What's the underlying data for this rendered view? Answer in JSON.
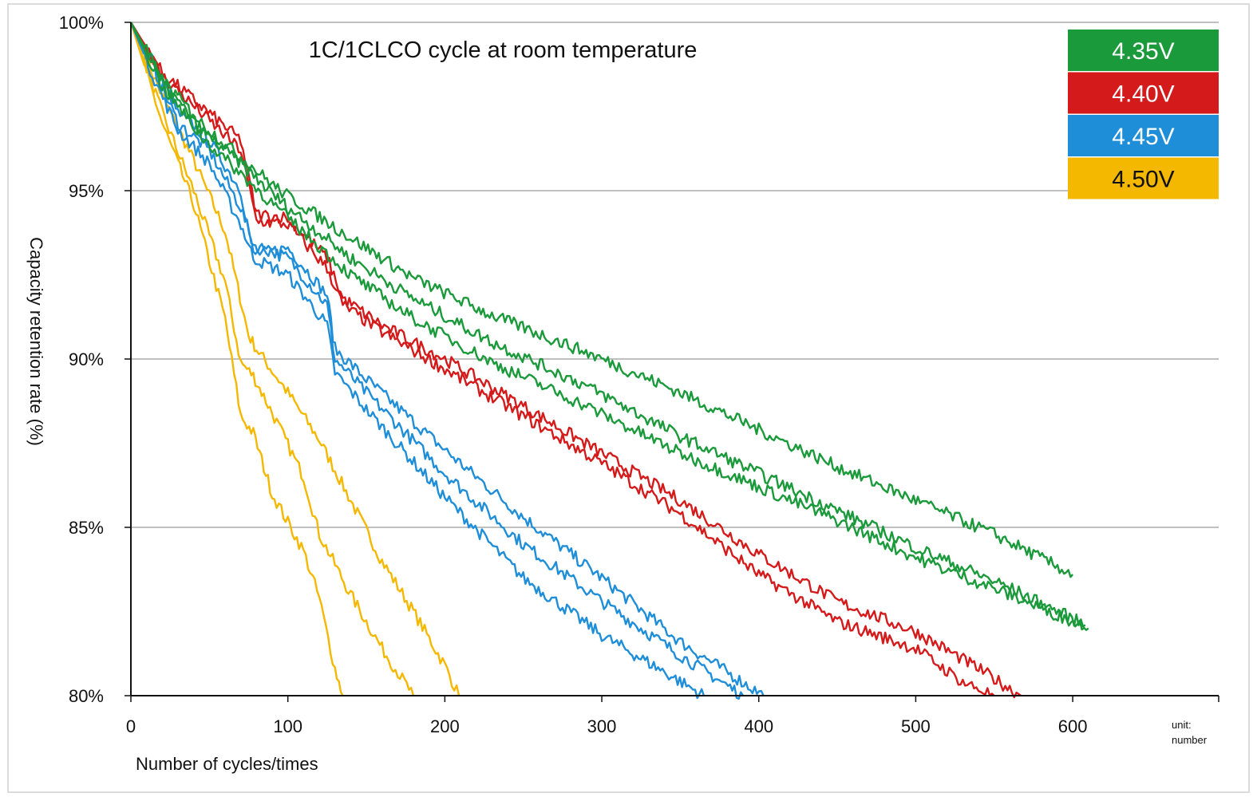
{
  "chart_data": {
    "type": "line",
    "title": "1C/1CLCO cycle at room temperature",
    "xlabel": "Number of cycles/times",
    "ylabel": "Capacity retention rate (%)",
    "x_unit_note": [
      "unit:",
      "number"
    ],
    "xlim": [
      0,
      693
    ],
    "ylim": [
      80,
      100
    ],
    "x_ticks": [
      0,
      100,
      200,
      300,
      400,
      500,
      600
    ],
    "x_tick_labels": [
      "0",
      "100",
      "200",
      "300",
      "400",
      "500",
      "600"
    ],
    "y_ticks": [
      80,
      85,
      90,
      95,
      100
    ],
    "y_tick_labels": [
      "80%",
      "85%",
      "90%",
      "95%",
      "100%"
    ],
    "grid": "horizontal",
    "legend": {
      "position": "top-right",
      "entries": [
        {
          "label": "4.35V",
          "color": "#1a9a3a",
          "text_color": "#ffffff"
        },
        {
          "label": "4.40V",
          "color": "#d41a1a",
          "text_color": "#ffffff"
        },
        {
          "label": "4.45V",
          "color": "#1f8ed8",
          "text_color": "#ffffff"
        },
        {
          "label": "4.50V",
          "color": "#f5b800",
          "text_color": "#111111"
        }
      ]
    },
    "series": [
      {
        "group": "4.35V",
        "color": "#1a9a3a",
        "x": [
          0,
          20,
          45,
          70,
          95,
          140,
          180,
          230,
          290,
          350,
          400,
          450,
          500,
          550,
          600
        ],
        "y": [
          100,
          98.3,
          97.0,
          96.0,
          95.0,
          93.6,
          92.4,
          91.3,
          90.2,
          89.0,
          87.9,
          86.8,
          85.8,
          84.8,
          83.6
        ]
      },
      {
        "group": "4.35V",
        "color": "#1a9a3a",
        "x": [
          0,
          20,
          45,
          70,
          95,
          140,
          180,
          230,
          290,
          350,
          400,
          450,
          500,
          560,
          608
        ],
        "y": [
          100,
          98.2,
          96.8,
          95.8,
          94.7,
          93.0,
          91.8,
          90.5,
          89.2,
          87.7,
          86.6,
          85.5,
          84.4,
          83.2,
          82.1
        ]
      },
      {
        "group": "4.35V",
        "color": "#1a9a3a",
        "x": [
          0,
          20,
          45,
          70,
          95,
          140,
          180,
          230,
          290,
          350,
          400,
          450,
          500,
          560,
          610
        ],
        "y": [
          100,
          98.1,
          96.6,
          95.5,
          94.4,
          92.5,
          91.2,
          89.9,
          88.6,
          87.2,
          86.2,
          85.2,
          84.1,
          83.0,
          82.0
        ]
      },
      {
        "group": "4.40V",
        "color": "#d41a1a",
        "x": [
          0,
          20,
          45,
          70,
          80,
          100,
          125,
          135,
          160,
          200,
          250,
          300,
          350,
          400,
          450,
          500,
          540,
          567
        ],
        "y": [
          100,
          98.5,
          97.5,
          96.5,
          94.3,
          94.2,
          93.0,
          91.8,
          91.0,
          90.0,
          88.6,
          87.2,
          85.8,
          84.2,
          82.8,
          81.9,
          80.8,
          80.0
        ]
      },
      {
        "group": "4.40V",
        "color": "#d41a1a",
        "x": [
          0,
          20,
          45,
          70,
          80,
          100,
          125,
          135,
          160,
          200,
          250,
          300,
          350,
          400,
          450,
          500,
          530,
          550
        ],
        "y": [
          100,
          98.4,
          97.3,
          96.2,
          94.1,
          94.0,
          92.7,
          91.6,
          90.8,
          89.7,
          88.3,
          86.9,
          85.4,
          83.6,
          82.2,
          81.4,
          80.4,
          80.0
        ]
      },
      {
        "group": "4.45V",
        "color": "#1f8ed8",
        "x": [
          0,
          15,
          30,
          50,
          70,
          78,
          100,
          125,
          130,
          150,
          200,
          250,
          300,
          350,
          403
        ],
        "y": [
          100,
          98.8,
          97.3,
          96.5,
          95.0,
          93.1,
          93.3,
          91.9,
          90.3,
          89.4,
          87.3,
          85.3,
          83.5,
          81.6,
          80.0
        ]
      },
      {
        "group": "4.45V",
        "color": "#1f8ed8",
        "x": [
          0,
          15,
          30,
          50,
          70,
          78,
          100,
          125,
          130,
          150,
          200,
          250,
          300,
          350,
          390
        ],
        "y": [
          100,
          98.6,
          97.0,
          96.2,
          94.5,
          93.4,
          93.0,
          91.6,
          90.0,
          89.0,
          86.6,
          84.5,
          82.8,
          81.2,
          80.0
        ]
      },
      {
        "group": "4.45V",
        "color": "#1f8ed8",
        "x": [
          0,
          15,
          30,
          50,
          70,
          78,
          100,
          125,
          130,
          150,
          200,
          250,
          300,
          340,
          365
        ],
        "y": [
          100,
          98.3,
          96.8,
          95.8,
          94.0,
          93.0,
          92.5,
          91.0,
          89.6,
          88.5,
          85.9,
          83.5,
          81.8,
          80.7,
          80.0
        ]
      },
      {
        "group": "4.50V",
        "color": "#f5b800",
        "x": [
          0,
          20,
          40,
          60,
          75,
          80,
          100,
          120,
          140,
          160,
          180,
          200,
          209
        ],
        "y": [
          100,
          97.8,
          95.9,
          93.8,
          90.7,
          90.3,
          89.0,
          87.6,
          85.8,
          84.0,
          82.5,
          80.9,
          80.0
        ]
      },
      {
        "group": "4.50V",
        "color": "#f5b800",
        "x": [
          0,
          20,
          40,
          60,
          70,
          78,
          90,
          110,
          120,
          140,
          160,
          180
        ],
        "y": [
          100,
          97.3,
          95.0,
          92.3,
          89.9,
          89.5,
          88.4,
          86.5,
          84.8,
          83.0,
          81.4,
          80.0
        ]
      },
      {
        "group": "4.50V",
        "color": "#f5b800",
        "x": [
          0,
          20,
          40,
          60,
          70,
          78,
          90,
          110,
          120,
          130,
          135
        ],
        "y": [
          100,
          97.0,
          94.6,
          91.2,
          88.3,
          87.8,
          86.0,
          84.3,
          82.9,
          80.8,
          80.0
        ]
      }
    ]
  }
}
